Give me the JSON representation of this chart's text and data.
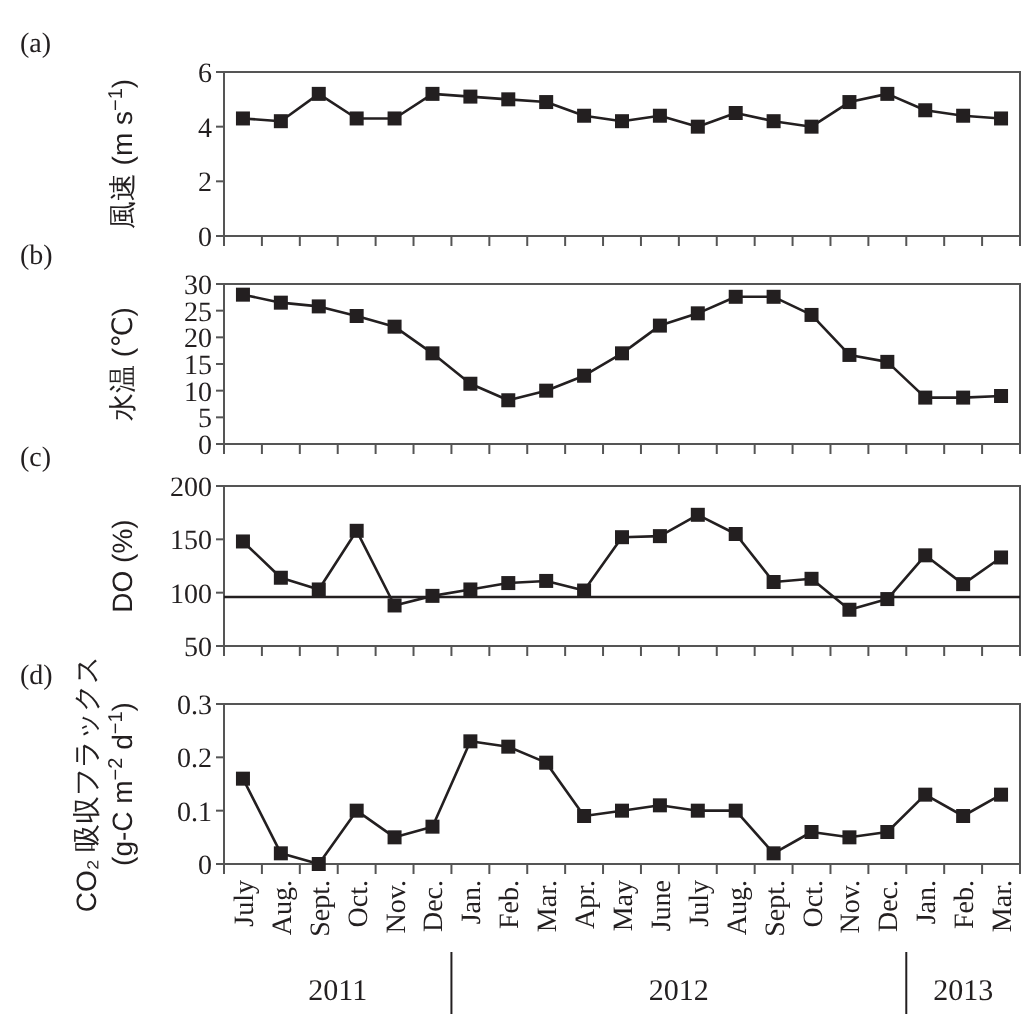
{
  "chart_data": [
    {
      "type": "line",
      "title": "(a)",
      "ylabel": "風速 (m s$^{−1}$)",
      "categories": [
        null,
        null,
        null,
        null,
        null,
        null,
        null,
        null,
        null,
        null,
        null,
        null,
        null,
        null,
        null,
        null,
        null,
        null,
        null,
        null,
        null
      ],
      "series": [
        {
          "color": "#231f20",
          "values": [
            4.3,
            4.2,
            5.2,
            4.3,
            4.3,
            5.2,
            5.1,
            5.0,
            4.9,
            4.4,
            4.2,
            4.4,
            4.0,
            4.5,
            4.2,
            4.0,
            4.9,
            5.2,
            4.6,
            4.4,
            4.3
          ]
        }
      ],
      "ylim": [
        0,
        6
      ],
      "yticks": [
        0,
        2,
        4,
        6
      ],
      "marker": "square",
      "tick_labels": "y"
    },
    {
      "type": "line",
      "title": "(b)",
      "ylabel": "水温 (℃)",
      "categories": [
        null,
        null,
        null,
        null,
        null,
        null,
        null,
        null,
        null,
        null,
        null,
        null,
        null,
        null,
        null,
        null,
        null,
        null,
        null,
        null,
        null
      ],
      "series": [
        {
          "color": "#231f20",
          "values": [
            28,
            26.5,
            25.8,
            24,
            22,
            17,
            11.3,
            8.2,
            10,
            12.8,
            17,
            22.2,
            24.5,
            27.6,
            27.6,
            24.2,
            16.7,
            15.4,
            8.7,
            8.7,
            9
          ]
        }
      ],
      "ylim": [
        0,
        30
      ],
      "yticks": [
        0,
        5,
        10,
        15,
        20,
        25,
        30
      ],
      "marker": "square",
      "tick_labels": "y"
    },
    {
      "type": "line",
      "title": "(c)",
      "ylabel": "DO (%)",
      "categories": [
        null,
        null,
        null,
        null,
        null,
        null,
        null,
        null,
        null,
        null,
        null,
        null,
        null,
        null,
        null,
        null,
        null,
        null,
        null,
        null,
        null
      ],
      "series": [
        {
          "color": "#231f20",
          "values": [
            148,
            114,
            103,
            158,
            88,
            97,
            103,
            109,
            111,
            102,
            152,
            153,
            173,
            155,
            110,
            113,
            84,
            94,
            135,
            108,
            133
          ]
        }
      ],
      "ylim": [
        50,
        200
      ],
      "yticks": [
        50,
        100,
        150,
        200
      ],
      "marker": "square",
      "tick_labels": "y",
      "ref_lines": [
        {
          "axis": "y",
          "value": 96,
          "color": "#231f20"
        }
      ]
    },
    {
      "type": "line",
      "title": "(d)",
      "ylabel": "CO₂ 吸収フラックス\n(g-C m$^{−2}$ d$^{−1}$)",
      "categories": [
        "July",
        "Aug.",
        "Sept.",
        "Oct.",
        "Nov.",
        "Dec.",
        "Jan.",
        "Feb.",
        "Mar.",
        "Apr.",
        "May",
        "June",
        "July",
        "Aug.",
        "Sept.",
        "Oct.",
        "Nov.",
        "Dec.",
        "Jan.",
        "Feb.",
        "Mar."
      ],
      "series": [
        {
          "color": "#231f20",
          "values": [
            0.16,
            0.02,
            0,
            0.1,
            0.05,
            0.07,
            0.23,
            0.22,
            0.19,
            0.09,
            0.1,
            0.11,
            0.1,
            0.1,
            0.02,
            0.06,
            0.05,
            0.06,
            0.13,
            0.09,
            0.13
          ]
        }
      ],
      "ylim": [
        0,
        0.3
      ],
      "yticks": [
        0,
        0.1,
        0.2,
        0.3
      ],
      "marker": "square",
      "annotations": [
        "2011",
        "2012",
        "2013"
      ]
    }
  ]
}
